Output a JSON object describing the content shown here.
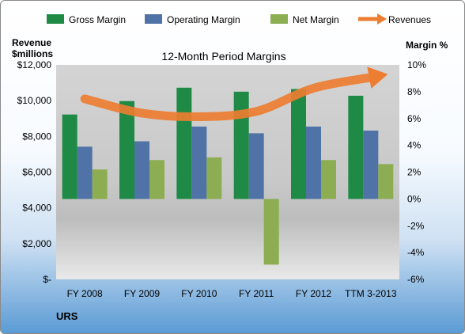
{
  "chart_data": {
    "type": "bar",
    "title": "12-Month Period Margins",
    "company": "URS",
    "left_axis_label_line1": "Revenue",
    "left_axis_label_line2": "$millions",
    "right_axis_label": "Margin %",
    "categories": [
      "FY 2008",
      "FY 2009",
      "FY 2010",
      "FY 2011",
      "FY 2012",
      "TTM 3-2013"
    ],
    "left_ticks": [
      "$-",
      "$2,000",
      "$4,000",
      "$6,000",
      "$8,000",
      "$10,000",
      "$12,000"
    ],
    "right_ticks": [
      "-6%",
      "-4%",
      "-2%",
      "0%",
      "2%",
      "4%",
      "6%",
      "8%",
      "10%"
    ],
    "ylim_left": [
      0,
      12000
    ],
    "ylim_right": [
      -6,
      10
    ],
    "legend_position": "top",
    "grid": false,
    "series": [
      {
        "name": "Gross Margin",
        "axis": "right",
        "color": "#1e8a45",
        "values": [
          6.3,
          7.3,
          8.3,
          8.0,
          8.2,
          7.7
        ]
      },
      {
        "name": "Operating Margin",
        "axis": "right",
        "color": "#4f73a6",
        "values": [
          3.9,
          4.3,
          5.4,
          4.9,
          5.4,
          5.1
        ]
      },
      {
        "name": "Net Margin",
        "axis": "right",
        "color": "#8cad52",
        "values": [
          2.2,
          2.9,
          3.1,
          -4.9,
          2.9,
          2.6
        ]
      },
      {
        "name": "Revenues",
        "axis": "left",
        "color": "#ed7d31",
        "type": "line-arrow",
        "values": [
          10100,
          9300,
          9100,
          9400,
          10700,
          11300
        ]
      }
    ]
  }
}
